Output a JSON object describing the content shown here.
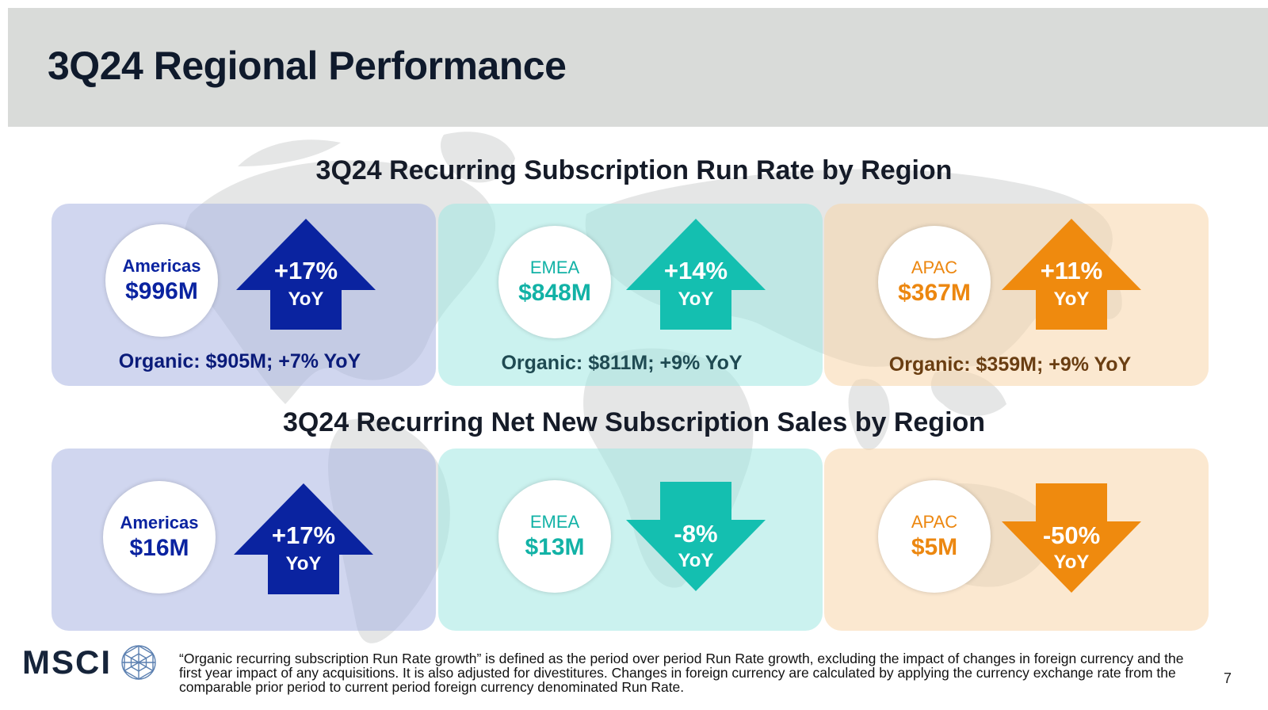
{
  "header": {
    "title": "3Q24 Regional Performance"
  },
  "section_run_rate": {
    "title": "3Q24 Recurring Subscription Run Rate by Region",
    "regions": [
      {
        "name": "Americas",
        "value": "$996M",
        "change": "+17%",
        "yoy": "YoY",
        "direction": "up",
        "organic": "Organic: $905M; +7% YoY",
        "color": "#0a23a0"
      },
      {
        "name": "EMEA",
        "value": "$848M",
        "change": "+14%",
        "yoy": "YoY",
        "direction": "up",
        "organic": "Organic: $811M; +9% YoY",
        "color": "#14b8aa"
      },
      {
        "name": "APAC",
        "value": "$367M",
        "change": "+11%",
        "yoy": "YoY",
        "direction": "up",
        "organic": "Organic: $359M; +9% YoY",
        "color": "#ef8a0e"
      }
    ]
  },
  "section_net_new": {
    "title": "3Q24 Recurring Net New Subscription Sales by Region",
    "regions": [
      {
        "name": "Americas",
        "value": "$16M",
        "change": "+17%",
        "yoy": "YoY",
        "direction": "up",
        "color": "#0a23a0"
      },
      {
        "name": "EMEA",
        "value": "$13M",
        "change": "-8%",
        "yoy": "YoY",
        "direction": "down",
        "color": "#14b8aa"
      },
      {
        "name": "APAC",
        "value": "$5M",
        "change": "-50%",
        "yoy": "YoY",
        "direction": "down",
        "color": "#ef8a0e"
      }
    ]
  },
  "footer": {
    "logo_text": "MSCI",
    "footnote": "“Organic recurring subscription Run Rate growth” is defined as the period over period Run Rate growth, excluding the impact of changes in foreign currency and the first year impact of any acquisitions. It is also adjusted for divestitures. Changes in foreign currency are calculated by applying the currency exchange rate from the comparable prior period to current period foreign currency denominated Run Rate.",
    "page_number": "7"
  }
}
